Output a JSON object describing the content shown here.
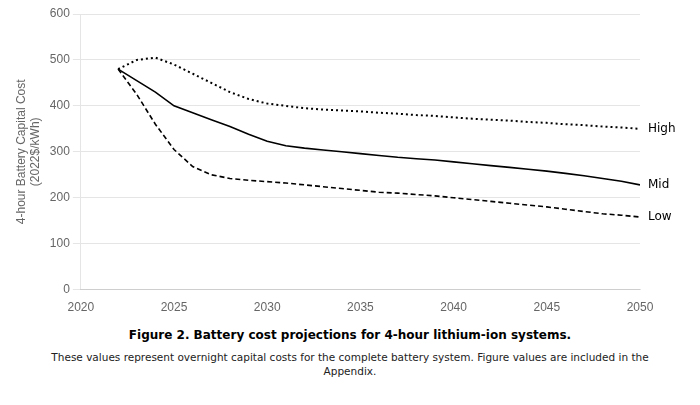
{
  "chart_data": {
    "type": "line",
    "title": "Figure 2. Battery cost projections for 4-hour lithium-ion systems.",
    "subtitle": "These values represent overnight capital costs for the complete battery system. Figure values are included in the\nAppendix.",
    "y_label": "4-hour Battery Capital Cost\n(2022$/kWh)",
    "x": [
      2022,
      2023,
      2024,
      2025,
      2026,
      2027,
      2028,
      2029,
      2030,
      2031,
      2032,
      2033,
      2034,
      2035,
      2036,
      2037,
      2038,
      2039,
      2040,
      2041,
      2042,
      2043,
      2044,
      2045,
      2046,
      2047,
      2048,
      2049,
      2050
    ],
    "series": [
      {
        "name": "High",
        "color": "#000000",
        "line_style": "dotted",
        "values": [
          480,
          500,
          505,
          490,
          470,
          450,
          430,
          415,
          405,
          400,
          395,
          392,
          390,
          388,
          385,
          383,
          380,
          378,
          375,
          372,
          370,
          368,
          365,
          363,
          360,
          358,
          355,
          353,
          350
        ]
      },
      {
        "name": "Mid",
        "color": "#000000",
        "line_style": "solid",
        "values": [
          480,
          455,
          430,
          400,
          385,
          370,
          355,
          338,
          323,
          313,
          308,
          304,
          300,
          296,
          292,
          288,
          285,
          282,
          278,
          274,
          270,
          266,
          262,
          258,
          253,
          248,
          242,
          236,
          228
        ]
      },
      {
        "name": "Low",
        "color": "#000000",
        "line_style": "dashed",
        "values": [
          480,
          425,
          360,
          305,
          268,
          250,
          242,
          238,
          235,
          232,
          228,
          224,
          220,
          216,
          212,
          210,
          207,
          204,
          200,
          196,
          192,
          188,
          184,
          180,
          175,
          170,
          165,
          162,
          158
        ]
      }
    ],
    "xlim": [
      2020,
      2050
    ],
    "ylim": [
      0,
      600
    ],
    "xticks": [
      2020,
      2025,
      2030,
      2035,
      2040,
      2045,
      2050
    ],
    "yticks": [
      0,
      100,
      200,
      300,
      400,
      500,
      600
    ],
    "grid": "y"
  }
}
